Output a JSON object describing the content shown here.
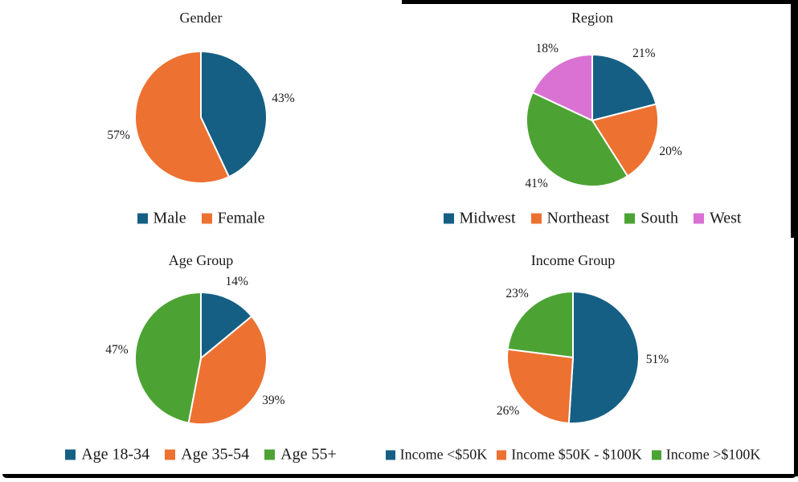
{
  "page": {
    "background": "#ffffff",
    "frame_color": "#000000",
    "text_color": "#1a1a1a"
  },
  "palette": {
    "blue": "#155f84",
    "orange": "#ed7130",
    "green": "#4ca334",
    "magenta": "#d972d3"
  },
  "chart_data": [
    {
      "type": "pie",
      "title": "Gender",
      "categories": [
        "Male",
        "Female"
      ],
      "values": [
        43,
        57
      ],
      "labels": [
        "43%",
        "57%"
      ],
      "colors": [
        "#155f84",
        "#ed7130"
      ],
      "start_angle_deg": 0,
      "direction": "clockwise",
      "legend_position": "bottom"
    },
    {
      "type": "pie",
      "title": "Region",
      "categories": [
        "Midwest",
        "Northeast",
        "South",
        "West"
      ],
      "values": [
        21,
        20,
        41,
        18
      ],
      "labels": [
        "21%",
        "20%",
        "41%",
        "18%"
      ],
      "colors": [
        "#155f84",
        "#ed7130",
        "#4ca334",
        "#d972d3"
      ],
      "start_angle_deg": 0,
      "direction": "clockwise",
      "legend_position": "bottom"
    },
    {
      "type": "pie",
      "title": "Age Group",
      "categories": [
        "Age 18-34",
        "Age 35-54",
        "Age 55+"
      ],
      "values": [
        14,
        39,
        47
      ],
      "labels": [
        "14%",
        "39%",
        "47%"
      ],
      "colors": [
        "#155f84",
        "#ed7130",
        "#4ca334"
      ],
      "start_angle_deg": 0,
      "direction": "clockwise",
      "legend_position": "bottom"
    },
    {
      "type": "pie",
      "title": "Income Group",
      "categories": [
        "Income <$50K",
        "Income $50K - $100K",
        "Income >$100K"
      ],
      "values": [
        51,
        26,
        23
      ],
      "labels": [
        "51%",
        "26%",
        "23%"
      ],
      "colors": [
        "#155f84",
        "#ed7130",
        "#4ca334"
      ],
      "start_angle_deg": 0,
      "direction": "clockwise",
      "legend_position": "bottom"
    }
  ]
}
